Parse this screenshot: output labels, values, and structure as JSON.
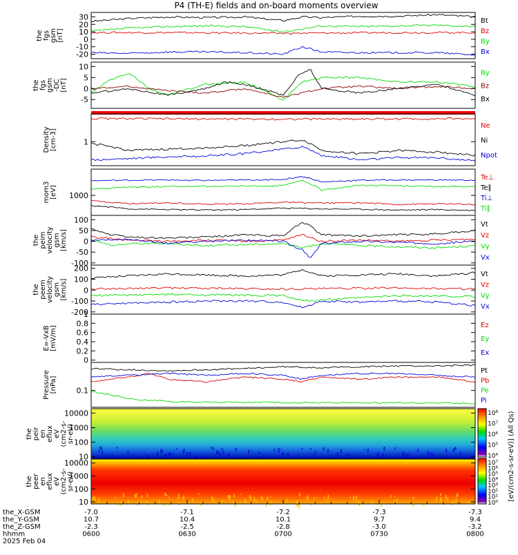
{
  "title": "P4 (TH-E) fields and on-board moments overview",
  "colors": {
    "black": "#000000",
    "red": "#dd0000",
    "green": "#00dd00",
    "blue": "#0000dd",
    "darkred": "#8b0000"
  },
  "chart_data": [
    {
      "type": "line",
      "id": "fgs_gsm",
      "ylabel": [
        "the",
        "fgs",
        "gsm",
        "[nT]"
      ],
      "yticks": [
        30,
        20,
        10,
        0,
        -10,
        -20
      ],
      "ylim": [
        -26,
        36
      ],
      "scale": "linear",
      "series": [
        {
          "name": "Bt",
          "color": "black",
          "x": [
            0,
            0.1,
            0.2,
            0.3,
            0.4,
            0.5,
            0.55,
            0.6,
            0.7,
            0.8,
            0.9,
            1
          ],
          "y": [
            24,
            28,
            30,
            29,
            30,
            25,
            30,
            29,
            31,
            31,
            33,
            30
          ]
        },
        {
          "name": "Bz",
          "color": "red",
          "x": [
            0,
            0.2,
            0.5,
            0.8,
            1
          ],
          "y": [
            9,
            9,
            8,
            9,
            9
          ]
        },
        {
          "name": "By",
          "color": "green",
          "x": [
            0,
            0.1,
            0.2,
            0.3,
            0.4,
            0.5,
            0.6,
            0.7,
            0.8,
            0.9,
            1
          ],
          "y": [
            11,
            15,
            17,
            18,
            17,
            10,
            18,
            17,
            18,
            19,
            17
          ]
        },
        {
          "name": "Bx",
          "color": "blue",
          "x": [
            0,
            0.1,
            0.2,
            0.3,
            0.4,
            0.5,
            0.55,
            0.6,
            0.7,
            0.8,
            0.9,
            1
          ],
          "y": [
            -18,
            -19,
            -17,
            -17,
            -18,
            -20,
            -10,
            -17,
            -18,
            -18,
            -18,
            -21
          ]
        }
      ]
    },
    {
      "type": "line",
      "id": "fgs_gsm_dc",
      "ylabel": [
        "the",
        "fgs",
        "gsm",
        "-DC",
        "[nT]"
      ],
      "yticks": [
        10,
        5,
        0,
        -5
      ],
      "ylim": [
        -9,
        12
      ],
      "scale": "linear",
      "series": [
        {
          "name": "By",
          "color": "green",
          "x": [
            0,
            0.05,
            0.1,
            0.15,
            0.2,
            0.3,
            0.4,
            0.5,
            0.55,
            0.6,
            0.7,
            0.8,
            0.9,
            1
          ],
          "y": [
            -2,
            4,
            7,
            0,
            -3,
            2,
            3,
            -5,
            3,
            5,
            5,
            3,
            3,
            1
          ]
        },
        {
          "name": "Bz",
          "color": "darkred",
          "x": [
            0,
            0.1,
            0.2,
            0.3,
            0.4,
            0.5,
            0.6,
            0.7,
            0.8,
            0.9,
            1
          ],
          "y": [
            0,
            1,
            -1,
            -2,
            0,
            -4,
            0,
            1,
            0,
            1,
            0
          ]
        },
        {
          "name": "Bx",
          "color": "black",
          "x": [
            0,
            0.1,
            0.2,
            0.3,
            0.35,
            0.4,
            0.5,
            0.54,
            0.57,
            0.6,
            0.7,
            0.8,
            0.9,
            1
          ],
          "y": [
            -2,
            0,
            -3,
            0,
            3,
            2,
            -3,
            6,
            9,
            0,
            -2,
            0,
            2,
            -3
          ]
        }
      ]
    },
    {
      "type": "line",
      "id": "density",
      "ylabel": [
        "Density",
        "[cm-3]"
      ],
      "yticks": [
        1
      ],
      "ylim": [
        0.25,
        5
      ],
      "scale": "log",
      "series": [
        {
          "name": "Ne",
          "color": "red",
          "x": [
            0,
            0.5,
            1
          ],
          "y": [
            3.8,
            3.7,
            3.8
          ]
        },
        {
          "name": "Ni",
          "color": "black",
          "x": [
            0,
            0.05,
            0.1,
            0.2,
            0.3,
            0.4,
            0.5,
            0.55,
            0.6,
            0.7,
            0.8,
            0.9,
            1
          ],
          "y": [
            0.9,
            0.75,
            0.6,
            0.65,
            0.7,
            0.8,
            1.0,
            1.1,
            0.6,
            0.5,
            0.6,
            0.55,
            0.45
          ]
        },
        {
          "name": "Npot",
          "color": "blue",
          "x": [
            0,
            0.1,
            0.2,
            0.3,
            0.4,
            0.5,
            0.55,
            0.6,
            0.7,
            0.8,
            0.9,
            1
          ],
          "y": [
            0.35,
            0.38,
            0.42,
            0.44,
            0.5,
            0.65,
            0.75,
            0.45,
            0.35,
            0.4,
            0.4,
            0.33
          ]
        }
      ]
    },
    {
      "type": "line",
      "id": "mom",
      "ylabel": [
        "mom3",
        "[eV]"
      ],
      "yticks": [
        1000
      ],
      "ylim": [
        150,
        12000
      ],
      "scale": "log",
      "series": [
        {
          "name": "Te⊥",
          "color": "red",
          "x": [
            0,
            0.1,
            0.2,
            0.3,
            0.4,
            0.5,
            0.6,
            0.7,
            0.8,
            0.9,
            1
          ],
          "y": [
            600,
            450,
            500,
            430,
            450,
            520,
            480,
            500,
            420,
            450,
            420
          ]
        },
        {
          "name": "Te∥",
          "color": "black",
          "x": [
            0,
            0.1,
            0.2,
            0.3,
            0.4,
            0.5,
            0.6,
            0.7,
            0.8,
            0.9,
            1
          ],
          "y": [
            380,
            280,
            260,
            250,
            260,
            300,
            280,
            270,
            250,
            260,
            240
          ]
        },
        {
          "name": "Ti⊥",
          "color": "blue",
          "x": [
            0,
            0.1,
            0.2,
            0.3,
            0.4,
            0.5,
            0.55,
            0.6,
            0.7,
            0.8,
            0.9,
            1
          ],
          "y": [
            4000,
            4200,
            4300,
            4100,
            4300,
            4500,
            6000,
            3500,
            4200,
            4300,
            4300,
            4200
          ]
        },
        {
          "name": "Ti∥",
          "color": "green",
          "x": [
            0,
            0.1,
            0.2,
            0.3,
            0.4,
            0.5,
            0.55,
            0.6,
            0.7,
            0.8,
            0.9,
            1
          ],
          "y": [
            1800,
            2200,
            2300,
            2400,
            2400,
            2500,
            4000,
            1600,
            2600,
            2500,
            2300,
            2300
          ]
        }
      ]
    },
    {
      "type": "line",
      "id": "peim_velocity",
      "ylabel": [
        "the",
        "peim",
        "velocity",
        "gsm",
        "[km/s]"
      ],
      "yticks": [
        100,
        50,
        0,
        -50,
        -100
      ],
      "ylim": [
        -110,
        120
      ],
      "scale": "linear",
      "series": [
        {
          "name": "Vt",
          "color": "black",
          "x": [
            0,
            0.05,
            0.1,
            0.2,
            0.3,
            0.4,
            0.5,
            0.55,
            0.57,
            0.6,
            0.7,
            0.8,
            0.9,
            1
          ],
          "y": [
            60,
            30,
            20,
            15,
            20,
            30,
            25,
            90,
            70,
            30,
            25,
            30,
            35,
            50
          ]
        },
        {
          "name": "Vz",
          "color": "red",
          "x": [
            0,
            0.1,
            0.2,
            0.3,
            0.4,
            0.5,
            0.55,
            0.6,
            0.7,
            0.8,
            0.9,
            1
          ],
          "y": [
            20,
            5,
            0,
            5,
            0,
            5,
            30,
            0,
            5,
            0,
            5,
            10
          ]
        },
        {
          "name": "Vy",
          "color": "green",
          "x": [
            0,
            0.05,
            0.1,
            0.2,
            0.3,
            0.4,
            0.5,
            0.55,
            0.6,
            0.7,
            0.8,
            0.9,
            1
          ],
          "y": [
            10,
            -20,
            -10,
            -10,
            -20,
            -15,
            -10,
            -30,
            -10,
            -20,
            -25,
            -30,
            -20
          ]
        },
        {
          "name": "Vx",
          "color": "blue",
          "x": [
            0,
            0.1,
            0.2,
            0.3,
            0.4,
            0.5,
            0.55,
            0.57,
            0.6,
            0.7,
            0.8,
            0.9,
            1
          ],
          "y": [
            5,
            10,
            -10,
            0,
            5,
            0,
            -40,
            -80,
            -10,
            0,
            -5,
            -10,
            0
          ]
        }
      ]
    },
    {
      "type": "line",
      "id": "peem_velocity",
      "ylabel": [
        "the",
        "peem",
        "velocity",
        "gsm",
        "[km/s]"
      ],
      "yticks": [
        200,
        100,
        0,
        -100,
        -200
      ],
      "ylim": [
        -220,
        230
      ],
      "scale": "linear",
      "series": [
        {
          "name": "Vt",
          "color": "black",
          "x": [
            0,
            0.1,
            0.2,
            0.3,
            0.4,
            0.5,
            0.55,
            0.6,
            0.7,
            0.8,
            0.9,
            1
          ],
          "y": [
            110,
            130,
            150,
            140,
            130,
            140,
            190,
            130,
            140,
            150,
            130,
            160
          ]
        },
        {
          "name": "Vz",
          "color": "red",
          "x": [
            0,
            0.2,
            0.5,
            0.8,
            1
          ],
          "y": [
            10,
            20,
            10,
            20,
            10
          ]
        },
        {
          "name": "Vy",
          "color": "green",
          "x": [
            0,
            0.2,
            0.5,
            0.55,
            0.8,
            1
          ],
          "y": [
            -50,
            -40,
            -50,
            -100,
            -50,
            -60
          ]
        },
        {
          "name": "Vx",
          "color": "blue",
          "x": [
            0,
            0.1,
            0.2,
            0.3,
            0.4,
            0.5,
            0.55,
            0.6,
            0.7,
            0.8,
            0.9,
            1
          ],
          "y": [
            -130,
            -120,
            -110,
            -100,
            -100,
            -110,
            -160,
            -100,
            -110,
            -100,
            -110,
            -140
          ]
        }
      ]
    },
    {
      "type": "line",
      "id": "efield",
      "ylabel": [
        "E=-VxB",
        "[mV/m]"
      ],
      "yticks": [
        1.0,
        0.8,
        0.6,
        0.4,
        0.2,
        0.0
      ],
      "ylim": [
        -0.05,
        1.0
      ],
      "scale": "linear",
      "series": [
        {
          "name": "Ez",
          "color": "red",
          "x": [],
          "y": []
        },
        {
          "name": "Ey",
          "color": "green",
          "x": [],
          "y": []
        },
        {
          "name": "Ex",
          "color": "blue",
          "x": [],
          "y": []
        }
      ]
    },
    {
      "type": "line",
      "id": "pressure",
      "ylabel": [
        "Pressure",
        "[nPa]"
      ],
      "yticks": [
        0.1
      ],
      "ylim": [
        0.025,
        1.0
      ],
      "scale": "log",
      "series": [
        {
          "name": "Pt",
          "color": "black",
          "x": [
            0,
            0.1,
            0.2,
            0.3,
            0.4,
            0.5,
            0.6,
            0.7,
            0.8,
            0.9,
            1
          ],
          "y": [
            0.6,
            0.55,
            0.5,
            0.55,
            0.6,
            0.7,
            0.65,
            0.7,
            0.75,
            0.75,
            0.8
          ]
        },
        {
          "name": "Pb",
          "color": "red",
          "x": [
            0,
            0.1,
            0.15,
            0.2,
            0.3,
            0.4,
            0.5,
            0.55,
            0.6,
            0.7,
            0.8,
            0.9,
            1
          ],
          "y": [
            0.2,
            0.3,
            0.4,
            0.25,
            0.2,
            0.3,
            0.25,
            0.2,
            0.3,
            0.25,
            0.3,
            0.3,
            0.2
          ]
        },
        {
          "name": "Pe",
          "color": "green",
          "x": [
            0,
            0.1,
            0.2,
            0.3,
            0.5,
            0.7,
            0.9,
            1
          ],
          "y": [
            0.09,
            0.05,
            0.04,
            0.038,
            0.037,
            0.036,
            0.036,
            0.034
          ]
        },
        {
          "name": "Pi",
          "color": "blue",
          "x": [
            0,
            0.1,
            0.2,
            0.3,
            0.4,
            0.5,
            0.55,
            0.6,
            0.7,
            0.8,
            0.9,
            1
          ],
          "y": [
            0.3,
            0.35,
            0.4,
            0.35,
            0.4,
            0.35,
            0.25,
            0.35,
            0.4,
            0.4,
            0.35,
            0.3
          ]
        }
      ]
    },
    {
      "type": "heatmap",
      "id": "peir_spec",
      "ylabel": [
        "the",
        "peir",
        "en",
        "eflux",
        "eV",
        "(cm2-s-",
        "sr-eV)"
      ],
      "yticks": [
        10000,
        1000,
        100,
        10
      ],
      "ylim": [
        7,
        20000
      ],
      "scale": "log"
    },
    {
      "type": "heatmap",
      "id": "peer_spec",
      "ylabel": [
        "the",
        "peer",
        "en",
        "eflux",
        "eV",
        "(cm2-s-",
        "sr-eV)"
      ],
      "yticks": [
        10000,
        1000,
        100,
        10
      ],
      "ylim": [
        7,
        20000
      ],
      "scale": "log"
    }
  ],
  "colorbar": {
    "upper_labels": [
      "10⁸",
      "10⁷",
      "10⁶",
      "10⁵",
      "10⁴"
    ],
    "lower_labels": [
      "10⁷",
      "10⁶",
      "10⁵",
      "10⁴",
      "10³",
      "10²",
      "10¹",
      "10⁰"
    ],
    "unit_label": "[eV/(cm2-s-sr-eV)] (All Qs)"
  },
  "xaxis": {
    "row_labels": [
      "the_X-GSM",
      "the_Y-GSM",
      "the_Z-GSM",
      "hhmm",
      "2025 Feb 04"
    ],
    "columns": [
      {
        "x": "-7.0",
        "y": "10.7",
        "z": "-2.3",
        "t": "0600"
      },
      {
        "x": "-7.1",
        "y": "10.4",
        "z": "-2.5",
        "t": "0630"
      },
      {
        "x": "-7.2",
        "y": "10.1",
        "z": "-2.8",
        "t": "0700"
      },
      {
        "x": "-7.3",
        "y": "9.7",
        "z": "-3.0",
        "t": "0730"
      },
      {
        "x": "-7.3",
        "y": "9.4",
        "z": "-3.2",
        "t": "0800"
      }
    ]
  }
}
